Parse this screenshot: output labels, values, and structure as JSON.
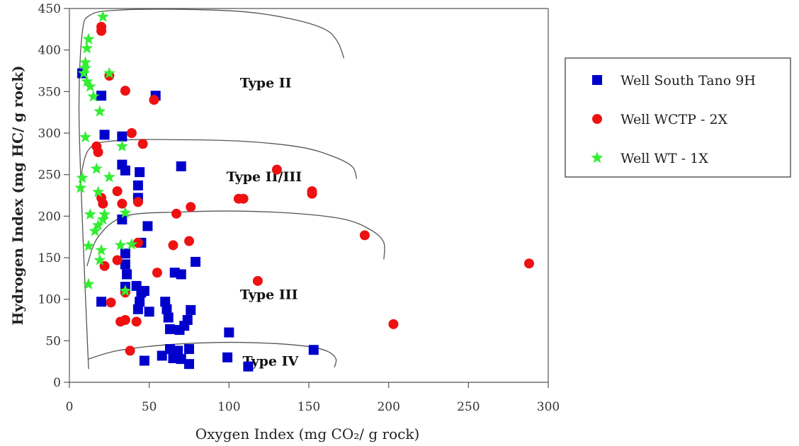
{
  "chart_data": {
    "type": "scatter",
    "xlabel": "Oxygen Index (mg CO₂/ g rock)",
    "ylabel": "Hydrogen Index (mg HC/ g rock)",
    "xlim": [
      0,
      300
    ],
    "ylim": [
      0,
      450
    ],
    "xticks": [
      0,
      50,
      100,
      150,
      200,
      250,
      300
    ],
    "yticks": [
      0,
      50,
      100,
      150,
      200,
      250,
      300,
      350,
      400,
      450
    ],
    "grid": false,
    "legend_position": "right",
    "regions": [
      {
        "label": "Type II",
        "at": [
          123,
          355
        ]
      },
      {
        "label": "Type II/III",
        "at": [
          122,
          242
        ]
      },
      {
        "label": "Type III",
        "at": [
          125,
          100
        ]
      },
      {
        "label": "Type IV",
        "at": [
          126,
          20
        ]
      }
    ],
    "curves": [
      {
        "points": [
          [
            12,
            16
          ],
          [
            8,
            200
          ],
          [
            6,
            330
          ],
          [
            8,
            420
          ],
          [
            13,
            442
          ],
          [
            30,
            448
          ],
          [
            70,
            449
          ],
          [
            110,
            446
          ],
          [
            140,
            437
          ],
          [
            160,
            425
          ],
          [
            168,
            410
          ],
          [
            172,
            390
          ]
        ]
      },
      {
        "points": [
          [
            6,
            230
          ],
          [
            12,
            280
          ],
          [
            30,
            291
          ],
          [
            70,
            292
          ],
          [
            110,
            290
          ],
          [
            145,
            283
          ],
          [
            165,
            272
          ],
          [
            177,
            260
          ],
          [
            180,
            245
          ]
        ]
      },
      {
        "points": [
          [
            11,
            140
          ],
          [
            18,
            175
          ],
          [
            35,
            200
          ],
          [
            70,
            205
          ],
          [
            110,
            206
          ],
          [
            150,
            202
          ],
          [
            175,
            195
          ],
          [
            190,
            182
          ],
          [
            197,
            168
          ],
          [
            197,
            148
          ]
        ]
      },
      {
        "points": [
          [
            12,
            28
          ],
          [
            30,
            38
          ],
          [
            60,
            45
          ],
          [
            95,
            48
          ],
          [
            125,
            47
          ],
          [
            150,
            43
          ],
          [
            162,
            37
          ],
          [
            167,
            28
          ],
          [
            166,
            18
          ]
        ]
      }
    ],
    "series": [
      {
        "name": "Well South Tano 9H",
        "marker": "square",
        "color": "#0000cc",
        "points": [
          [
            8,
            372
          ],
          [
            20,
            345
          ],
          [
            54,
            345
          ],
          [
            22,
            298
          ],
          [
            33,
            296
          ],
          [
            33,
            262
          ],
          [
            35,
            255
          ],
          [
            44,
            253
          ],
          [
            43,
            237
          ],
          [
            70,
            260
          ],
          [
            43,
            222
          ],
          [
            49,
            188
          ],
          [
            33,
            196
          ],
          [
            45,
            168
          ],
          [
            35,
            155
          ],
          [
            35,
            142
          ],
          [
            36,
            130
          ],
          [
            66,
            132
          ],
          [
            70,
            130
          ],
          [
            79,
            145
          ],
          [
            35,
            115
          ],
          [
            42,
            116
          ],
          [
            45,
            108
          ],
          [
            47,
            110
          ],
          [
            44,
            97
          ],
          [
            60,
            97
          ],
          [
            61,
            88
          ],
          [
            76,
            87
          ],
          [
            43,
            88
          ],
          [
            50,
            85
          ],
          [
            20,
            97
          ],
          [
            62,
            78
          ],
          [
            63,
            64
          ],
          [
            69,
            63
          ],
          [
            72,
            68
          ],
          [
            74,
            75
          ],
          [
            100,
            60
          ],
          [
            63,
            40
          ],
          [
            68,
            38
          ],
          [
            75,
            40
          ],
          [
            58,
            32
          ],
          [
            65,
            29
          ],
          [
            70,
            28
          ],
          [
            75,
            22
          ],
          [
            99,
            30
          ],
          [
            47,
            26
          ],
          [
            112,
            19
          ],
          [
            153,
            39
          ]
        ]
      },
      {
        "name": "Well WCTP - 2X",
        "marker": "circle",
        "color": "#ee1111",
        "points": [
          [
            20,
            428
          ],
          [
            20,
            423
          ],
          [
            25,
            369
          ],
          [
            35,
            351
          ],
          [
            53,
            340
          ],
          [
            39,
            300
          ],
          [
            17,
            284
          ],
          [
            18,
            277
          ],
          [
            46,
            287
          ],
          [
            130,
            256
          ],
          [
            20,
            222
          ],
          [
            21,
            215
          ],
          [
            30,
            230
          ],
          [
            33,
            215
          ],
          [
            43,
            217
          ],
          [
            106,
            221
          ],
          [
            109,
            221
          ],
          [
            152,
            230
          ],
          [
            152,
            227
          ],
          [
            67,
            203
          ],
          [
            76,
            211
          ],
          [
            185,
            177
          ],
          [
            43,
            168
          ],
          [
            65,
            165
          ],
          [
            75,
            170
          ],
          [
            22,
            140
          ],
          [
            30,
            147
          ],
          [
            55,
            132
          ],
          [
            118,
            122
          ],
          [
            288,
            143
          ],
          [
            26,
            96
          ],
          [
            35,
            108
          ],
          [
            32,
            73
          ],
          [
            35,
            75
          ],
          [
            42,
            73
          ],
          [
            203,
            70
          ],
          [
            38,
            38
          ]
        ]
      },
      {
        "name": "Well  WT - 1X",
        "marker": "star",
        "color": "#33ee33",
        "points": [
          [
            21,
            440
          ],
          [
            12,
            413
          ],
          [
            11,
            402
          ],
          [
            10,
            385
          ],
          [
            10,
            378
          ],
          [
            9,
            372
          ],
          [
            25,
            372
          ],
          [
            11,
            362
          ],
          [
            13,
            356
          ],
          [
            15,
            344
          ],
          [
            19,
            326
          ],
          [
            33,
            284
          ],
          [
            10,
            295
          ],
          [
            17,
            257
          ],
          [
            8,
            246
          ],
          [
            25,
            247
          ],
          [
            7,
            234
          ],
          [
            18,
            229
          ],
          [
            13,
            202
          ],
          [
            22,
            202
          ],
          [
            35,
            204
          ],
          [
            21,
            196
          ],
          [
            18,
            189
          ],
          [
            16,
            182
          ],
          [
            12,
            164
          ],
          [
            20,
            159
          ],
          [
            32,
            165
          ],
          [
            39,
            166
          ],
          [
            19,
            147
          ],
          [
            35,
            110
          ],
          [
            12,
            118
          ]
        ]
      }
    ]
  }
}
